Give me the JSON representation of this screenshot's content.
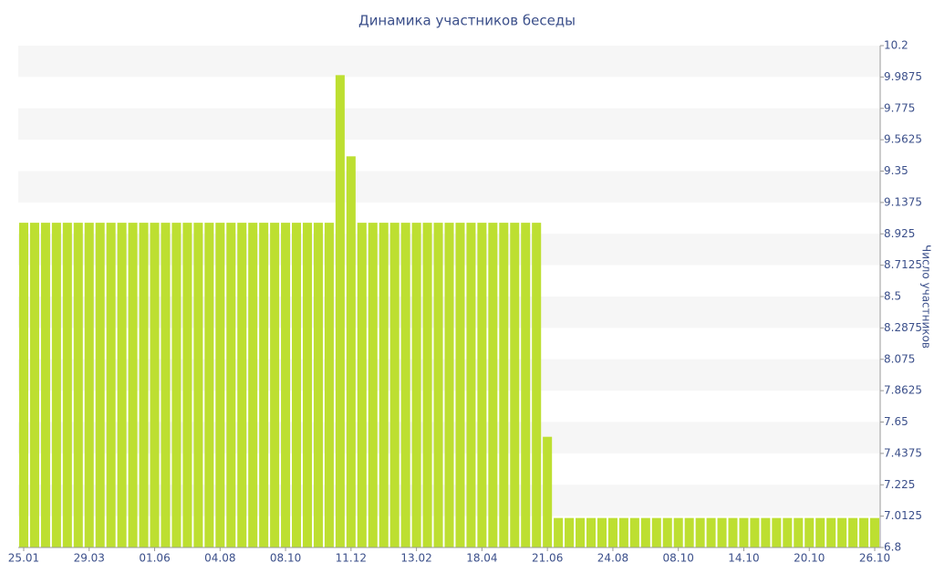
{
  "chart_data": {
    "type": "bar",
    "title": "Динамика участников беседы",
    "y_label": "Число участников",
    "categories": [
      "25.01",
      null,
      null,
      null,
      null,
      null,
      "29.03",
      null,
      null,
      null,
      null,
      null,
      "01.06",
      null,
      null,
      null,
      null,
      null,
      "04.08",
      null,
      null,
      null,
      null,
      null,
      "08.10",
      null,
      null,
      null,
      null,
      null,
      "11.12",
      null,
      null,
      null,
      null,
      null,
      "13.02",
      null,
      null,
      null,
      null,
      null,
      "18.04",
      null,
      null,
      null,
      null,
      null,
      "21.06",
      null,
      null,
      null,
      null,
      null,
      "24.08",
      null,
      null,
      null,
      null,
      null,
      "08.10",
      null,
      null,
      null,
      null,
      null,
      "14.10",
      null,
      null,
      null,
      null,
      null,
      "20.10",
      null,
      null,
      null,
      null,
      null,
      "26.10"
    ],
    "values": [
      9,
      9,
      9,
      9,
      9,
      9,
      9,
      9,
      9,
      9,
      9,
      9,
      9,
      9,
      9,
      9,
      9,
      9,
      9,
      9,
      9,
      9,
      9,
      9,
      9,
      9,
      9,
      9,
      9,
      10,
      9.45,
      9,
      9,
      9,
      9,
      9,
      9,
      9,
      9,
      9,
      9,
      9,
      9,
      9,
      9,
      9,
      9,
      9,
      7.55,
      7,
      7,
      7,
      7,
      7,
      7,
      7,
      7,
      7,
      7,
      7,
      7,
      7,
      7,
      7,
      7,
      7,
      7,
      7,
      7,
      7,
      7,
      7,
      7,
      7,
      7,
      7,
      7,
      7,
      7
    ],
    "color": "#bddf31",
    "ylim": [
      6.8,
      10.2
    ],
    "yticks": [
      10.2,
      9.9875,
      9.775,
      9.5625,
      9.35,
      9.1375,
      8.925,
      8.7125,
      8.5,
      8.2875,
      8.075,
      7.8625,
      7.65,
      7.4375,
      7.225,
      7.0125,
      6.8
    ],
    "y_axis_side": "right",
    "band_color": "#f6f6f6"
  }
}
